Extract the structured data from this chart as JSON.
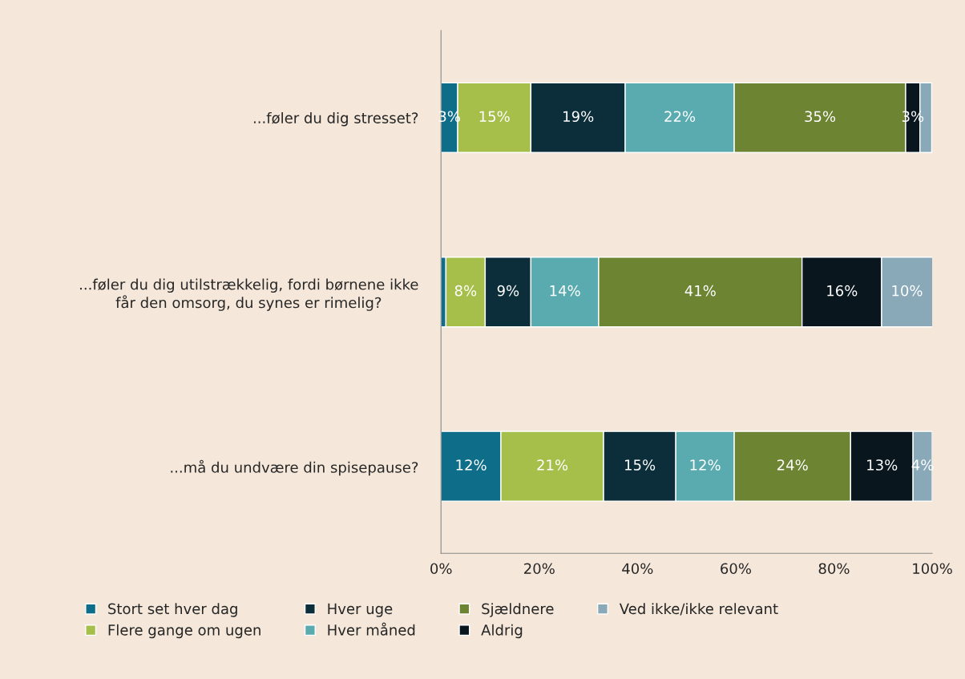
{
  "chart_data": {
    "type": "bar",
    "orientation": "horizontal",
    "stacked": true,
    "categories": [
      "...føler du dig stresset?",
      "...føler du dig utilstrækkelig, fordi børnene ikke får den omsorg, du synes er rimelig?",
      "...må du undvære din spisepause?"
    ],
    "series": [
      {
        "name": "Stort set hver dag",
        "color": "#0e6e8a",
        "values": [
          3.4,
          1.0,
          12.2
        ],
        "value_labels": [
          "3%",
          null,
          "12%"
        ]
      },
      {
        "name": "Flere gange om ugen",
        "color": "#a6bf4b",
        "values": [
          14.9,
          8.0,
          20.9
        ],
        "value_labels": [
          "15%",
          "8%",
          "21%"
        ]
      },
      {
        "name": "Hver uge",
        "color": "#0b2e3a",
        "values": [
          19.2,
          9.3,
          14.7
        ],
        "value_labels": [
          "19%",
          "9%",
          "15%"
        ]
      },
      {
        "name": "Hver måned",
        "color": "#5aabb0",
        "values": [
          22.2,
          13.8,
          11.9
        ],
        "value_labels": [
          "22%",
          "14%",
          "12%"
        ]
      },
      {
        "name": "Sjældnere",
        "color": "#6d8433",
        "values": [
          34.9,
          41.4,
          23.7
        ],
        "value_labels": [
          "35%",
          "41%",
          "24%"
        ]
      },
      {
        "name": "Aldrig",
        "color": "#0a161e",
        "values": [
          2.9,
          16.2,
          12.7
        ],
        "value_labels": [
          "3%",
          "16%",
          "13%"
        ]
      },
      {
        "name": "Ved ikke/ikke relevant",
        "color": "#89a9b9",
        "values": [
          2.4,
          10.4,
          3.9
        ],
        "value_labels": [
          null,
          "10%",
          "4%"
        ]
      }
    ],
    "xlim": [
      0,
      100
    ],
    "xticks": [
      {
        "value": 0,
        "label": "0%"
      },
      {
        "value": 20,
        "label": "20%"
      },
      {
        "value": 40,
        "label": "40%"
      },
      {
        "value": 60,
        "label": "60%"
      },
      {
        "value": 80,
        "label": "80%"
      },
      {
        "value": 100,
        "label": "100%"
      }
    ],
    "grid": false,
    "legend": "bottom"
  }
}
